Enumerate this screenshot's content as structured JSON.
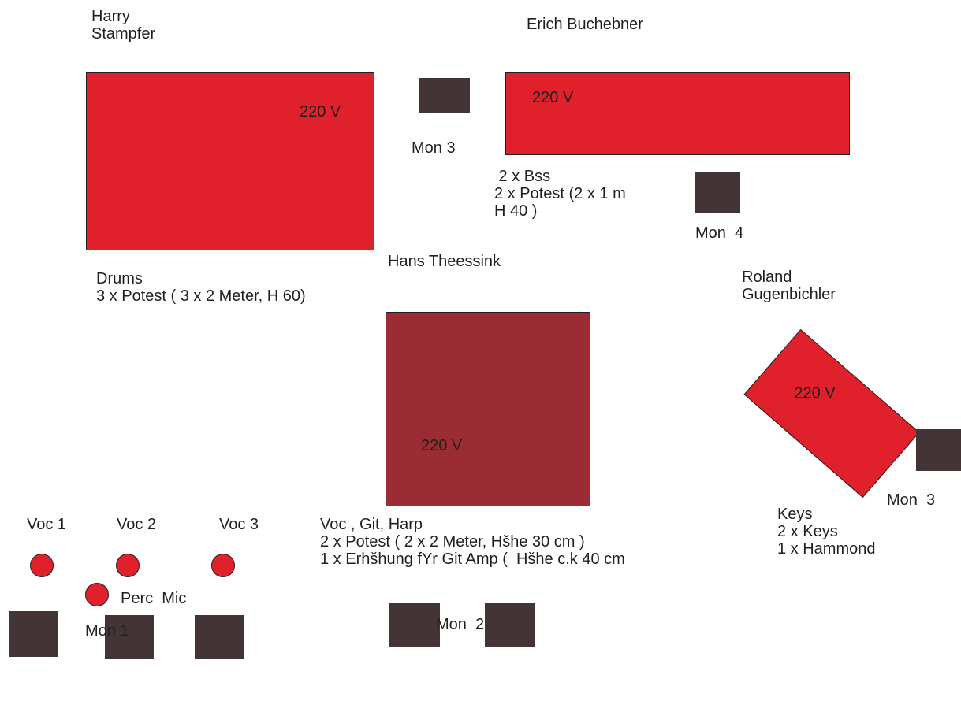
{
  "colors": {
    "riser": "#e0202a",
    "riser_center": "#9b2c33",
    "monitor": "#433436",
    "text": "#231f20"
  },
  "players": {
    "harry": "Harry\nStampfer",
    "erich": "Erich Buchebner",
    "hans": "Hans Theessink",
    "roland": "Roland\nGugenbichler"
  },
  "risers": {
    "drums_voltage": "220 V",
    "bass_voltage": "220 V",
    "center_voltage": "220 V",
    "keys_voltage": "220 V"
  },
  "notes": {
    "drums": "Drums\n3 x Potest ( 3 x 2 Meter, H 60)",
    "bass": " 2 x Bss\n2 x Potest (2 x 1 m\nH 40 )",
    "center": "Voc , Git, Harp\n2 x Potest ( 2 x 2 Meter, Hšhe 30 cm )\n1 x Erhšhung fYr Git Amp (  Hšhe c.k 40 cm",
    "keys": "Keys\n2 x Keys\n1 x Hammond"
  },
  "monitors": {
    "mon3_top": "Mon 3",
    "mon4": "Mon  4",
    "mon3_right": "Mon  3",
    "mon1": "Mon 1",
    "mon2": "Mon  2"
  },
  "mics": {
    "voc1": "Voc 1",
    "voc2": "Voc 2",
    "voc3": "Voc 3",
    "perc": "Perc  Mic"
  }
}
